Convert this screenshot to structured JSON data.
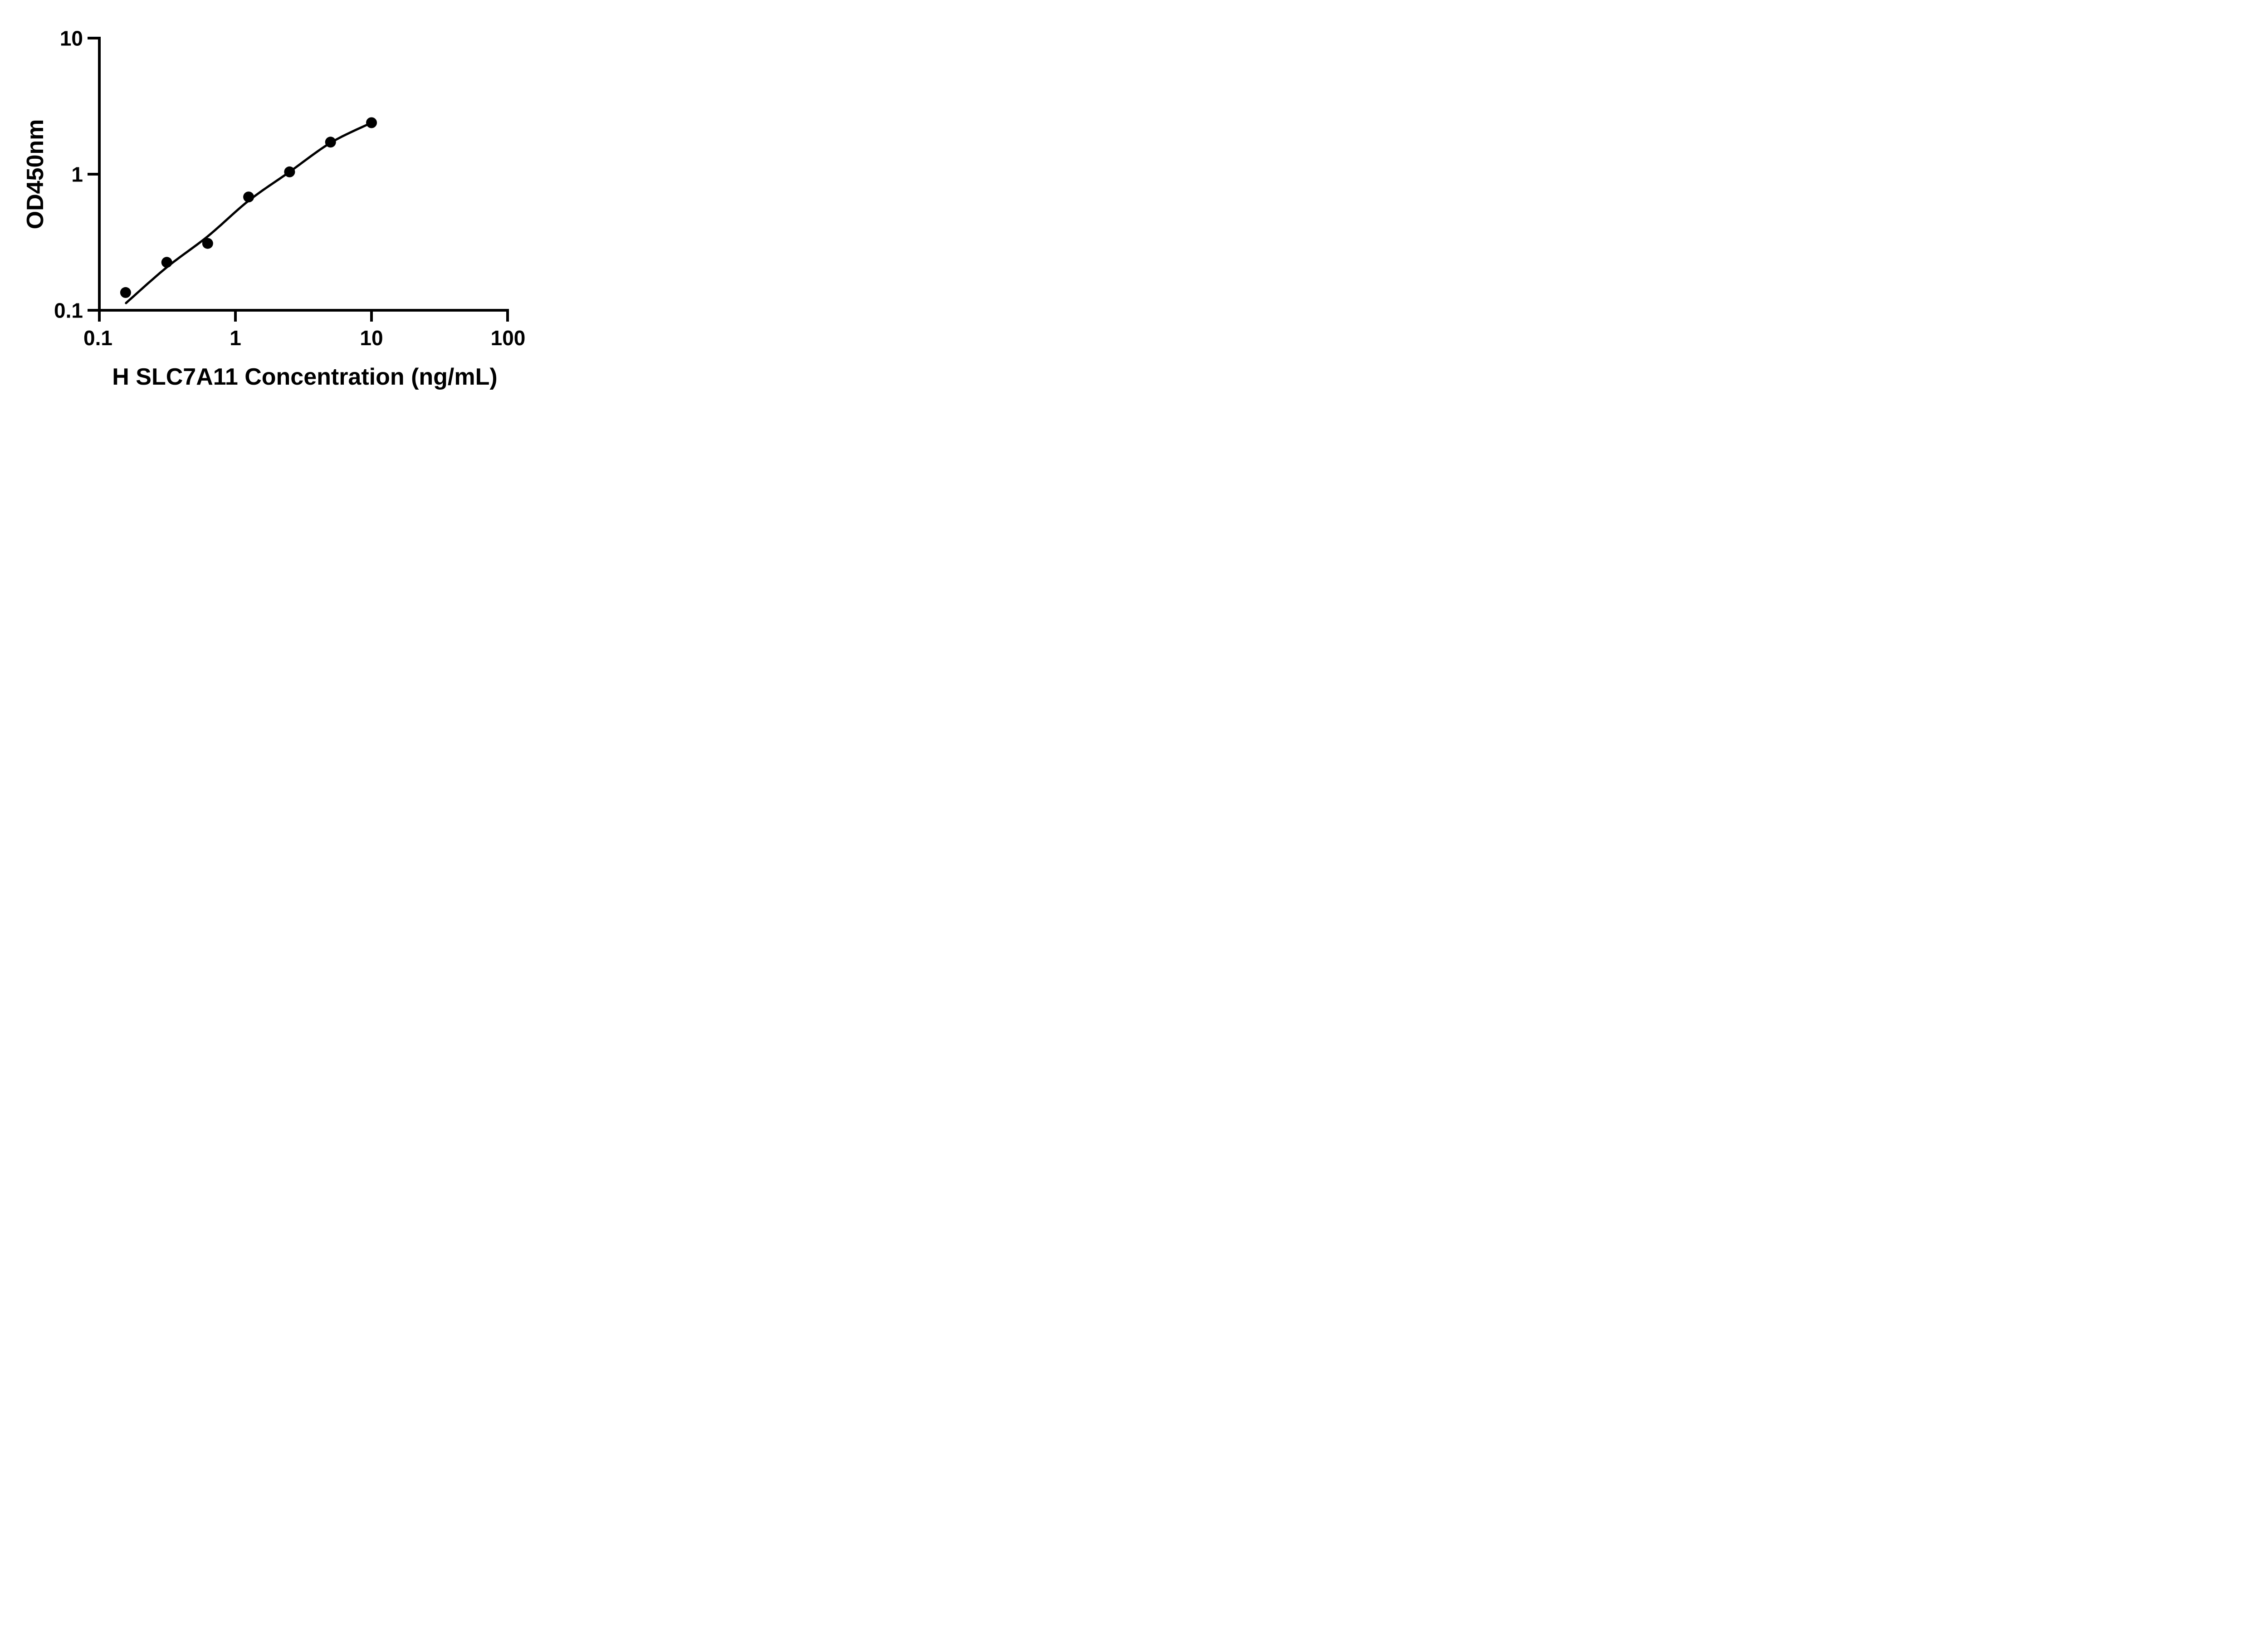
{
  "chart_data": {
    "type": "scatter",
    "title": "",
    "xlabel": "H SLC7A11 Concentration (ng/mL)",
    "ylabel": "OD450nm",
    "x_scale": "log",
    "y_scale": "log",
    "xlim": [
      0.1,
      100
    ],
    "ylim": [
      0.1,
      10
    ],
    "grid": false,
    "legend": "none",
    "marker_color": "#000000",
    "line_color": "#000000",
    "axis_color": "#000000",
    "x_ticks": [
      {
        "value": 0.1,
        "label": "0.1"
      },
      {
        "value": 1,
        "label": "1"
      },
      {
        "value": 10,
        "label": "10"
      },
      {
        "value": 100,
        "label": "100"
      }
    ],
    "y_ticks": [
      {
        "value": 10,
        "label": "10"
      },
      {
        "value": 1,
        "label": "1"
      },
      {
        "value": 0.1,
        "label": "0.1"
      }
    ],
    "points": [
      {
        "x": 0.156,
        "od": 0.135
      },
      {
        "x": 0.313,
        "od": 0.225
      },
      {
        "x": 0.625,
        "od": 0.31
      },
      {
        "x": 1.25,
        "od": 0.68
      },
      {
        "x": 2.5,
        "od": 1.04
      },
      {
        "x": 5,
        "od": 1.72
      },
      {
        "x": 10,
        "od": 2.39
      }
    ],
    "curve": [
      {
        "x": 0.157,
        "od": 0.113
      },
      {
        "x": 0.313,
        "od": 0.207
      },
      {
        "x": 0.625,
        "od": 0.349
      },
      {
        "x": 1.25,
        "od": 0.638
      },
      {
        "x": 2.5,
        "od": 1.04
      },
      {
        "x": 5,
        "od": 1.7
      },
      {
        "x": 10,
        "od": 2.39
      }
    ]
  }
}
